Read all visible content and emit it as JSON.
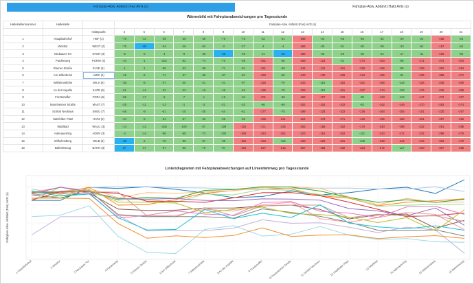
{
  "tabs": [
    {
      "label": "Fahrplan-Abw. Abfahrt (Fan AVG (s)"
    },
    {
      "label": "Fahrplan-Abw. Abfahrt (Halt) AVG (s)"
    }
  ],
  "heatmap": {
    "title": "Wärmebild mit Fahrplanabweichungen pro Tagesstunde",
    "col_headers": {
      "index": "Haltestellennummer",
      "name": "Haltestelle",
      "point": "Haltepunkt",
      "group": "Fahrplan-Abw. Abfahrt (Fan) AVG (s)"
    },
    "hours": [
      "4",
      "5",
      "6",
      "7",
      "8",
      "9",
      "10",
      "11",
      "12",
      "13",
      "14",
      "15",
      "16",
      "17",
      "18",
      "19",
      "20",
      "21"
    ],
    "rows": [
      {
        "index": "1",
        "name": "Hauptbahnhof",
        "point": "HBF (1)",
        "values": [
          "-76",
          "-14",
          "-26",
          "-36",
          "-46",
          "-76",
          "-75",
          "-32",
          "-41",
          "-266",
          "-34",
          "-66",
          "-46",
          "-32",
          "-29",
          "-24",
          "-165",
          "-64"
        ],
        "cls": [
          "g",
          "g",
          "g",
          "g",
          "g",
          "g",
          "g",
          "g",
          "g",
          "r",
          "g",
          "g",
          "g",
          "g",
          "g",
          "g",
          "r",
          "g"
        ]
      },
      {
        "index": "2",
        "name": "Westtor",
        "point": "WEST (2)",
        "values": [
          "-76",
          "-38",
          "-34",
          "-26",
          "-63",
          "-3",
          "-27",
          "-4",
          "-4",
          "-166",
          "-35",
          "-51",
          "-35",
          "-29",
          "-43",
          "-52",
          "-157",
          "-64"
        ],
        "cls": [
          "g",
          "b",
          "g",
          "g",
          "g",
          "g",
          "g",
          "g",
          "g",
          "r",
          "g",
          "g",
          "g",
          "g",
          "g",
          "g",
          "r",
          "g"
        ]
      },
      {
        "index": "3",
        "name": "Neubauer Tor",
        "point": "NTOR (3)",
        "values": [
          "-5",
          "-6",
          "-4",
          "-9",
          "-26",
          "-35",
          "-28",
          "-21",
          "-29",
          "-166",
          "-36",
          "-29",
          "-36",
          "-24",
          "-17",
          "-41",
          "-106",
          "-66"
        ],
        "cls": [
          "g",
          "g",
          "g",
          "g",
          "g",
          "b",
          "g",
          "g",
          "b",
          "r",
          "g",
          "g",
          "g",
          "g",
          "g",
          "g",
          "r",
          "g"
        ]
      },
      {
        "index": "4",
        "name": "Pardenweg",
        "point": "PGRW (4)",
        "values": [
          "-10",
          "-1",
          "-102",
          "-62",
          "-74",
          "-70",
          "-38",
          "-161",
          "-66",
          "-159",
          "-124",
          "-31",
          "-174",
          "-154",
          "-86",
          "-171",
          "-274",
          "-204"
        ],
        "cls": [
          "g",
          "g",
          "g",
          "g",
          "g",
          "g",
          "g",
          "r",
          "g",
          "r",
          "r",
          "g",
          "r",
          "r",
          "g",
          "r",
          "r",
          "r"
        ]
      },
      {
        "index": "5",
        "name": "Ebener Straße",
        "point": "ELSE (4)",
        "values": [
          "-1",
          "-1",
          "-99",
          "-33",
          "-59",
          "-71",
          "-81",
          "-161",
          "-69",
          "-244",
          "-131",
          "-161",
          "-158",
          "-166",
          "-86",
          "-239",
          "-362",
          "-284"
        ],
        "cls": [
          "g",
          "g",
          "g",
          "g",
          "g",
          "g",
          "g",
          "r",
          "g",
          "r",
          "r",
          "r",
          "r",
          "r",
          "g",
          "r",
          "r",
          "r"
        ]
      },
      {
        "index": "6",
        "name": "Am Silberbrink",
        "point": "AMSI (4)",
        "values": [
          "-15",
          "-6",
          "-71",
          "-37",
          "-66",
          "-87",
          "-81",
          "-160",
          "-66",
          "-243",
          "-130",
          "-166",
          "-134",
          "-165",
          "-91",
          "-236",
          "-368",
          "-271"
        ],
        "cls": [
          "g",
          "g",
          "g",
          "g",
          "g",
          "g",
          "g",
          "r",
          "g",
          "r",
          "r",
          "r",
          "r",
          "r",
          "g",
          "r",
          "r",
          "r"
        ]
      },
      {
        "index": "7",
        "name": "Wilhelmsthöhe",
        "point": "WILH (5)",
        "values": [
          "-36",
          "-8",
          "-37",
          "-30",
          "-21",
          "-41",
          "-87",
          "-125",
          "-76",
          "-243",
          "-118",
          "-116",
          "-151",
          "-166",
          "-144",
          "-126",
          "-236",
          "-280"
        ],
        "cls": [
          "g",
          "g",
          "g",
          "g",
          "g",
          "g",
          "g",
          "r",
          "g",
          "r",
          "g",
          "r",
          "r",
          "r",
          "g",
          "r",
          "r",
          "r"
        ]
      },
      {
        "index": "8",
        "name": "An der Kapelle",
        "point": "KAPE (6)",
        "values": [
          "-61",
          "-14",
          "-22",
          "-23",
          "-16",
          "-46",
          "-62",
          "-135",
          "-78",
          "-229",
          "-118",
          "-161",
          "-157",
          "-174",
          "-126",
          "-176",
          "-215",
          "-269"
        ],
        "cls": [
          "g",
          "g",
          "g",
          "g",
          "g",
          "g",
          "g",
          "r",
          "g",
          "r",
          "g",
          "r",
          "r",
          "r",
          "g",
          "r",
          "r",
          "r"
        ]
      },
      {
        "index": "9",
        "name": "Forstersdfer",
        "point": "FORA (6)",
        "values": [
          "-55",
          "-17",
          "-6",
          "-7",
          "-1",
          "-15",
          "-34",
          "-101",
          "-68",
          "-183",
          "-107",
          "-106",
          "-88",
          "-123",
          "-113",
          "-147",
          "-272",
          "-227"
        ],
        "cls": [
          "g",
          "g",
          "g",
          "g",
          "g",
          "g",
          "g",
          "r",
          "g",
          "r",
          "r",
          "r",
          "g",
          "r",
          "g",
          "r",
          "r",
          "r"
        ]
      },
      {
        "index": "10",
        "name": "Mannheimer Straße",
        "point": "MAST (7)",
        "values": [
          "-25",
          "-11",
          "-13",
          "-1",
          "-3",
          "-21",
          "-33",
          "-86",
          "-69",
          "-202",
          "-102",
          "-102",
          "-83",
          "-142",
          "-149",
          "-170",
          "-262",
          "-274"
        ],
        "cls": [
          "g",
          "g",
          "g",
          "g",
          "g",
          "g",
          "g",
          "g",
          "g",
          "r",
          "r",
          "r",
          "g",
          "r",
          "r",
          "r",
          "r",
          "r"
        ]
      },
      {
        "index": "11",
        "name": "Schloß Neuhaus",
        "point": "SNEU (7)",
        "values": [
          "-46",
          "-9",
          "-51",
          "-10",
          "-25",
          "-44",
          "-51",
          "-177",
          "-75",
          "-199",
          "-126",
          "-102",
          "-136",
          "-164",
          "-154",
          "-101",
          "-220",
          "-267"
        ],
        "cls": [
          "g",
          "g",
          "g",
          "g",
          "g",
          "g",
          "g",
          "r",
          "g",
          "r",
          "r",
          "r",
          "r",
          "r",
          "r",
          "r",
          "r",
          "r"
        ]
      },
      {
        "index": "12",
        "name": "Hatzfelder Platz",
        "point": "HATZ (2)",
        "values": [
          "-34",
          "-9",
          "-64",
          "-57",
          "-60",
          "-59",
          "-86",
          "-196",
          "-121",
          "-224",
          "-178",
          "-171",
          "-146",
          "-196",
          "-168",
          "-201",
          "-267",
          "-265"
        ],
        "cls": [
          "g",
          "g",
          "g",
          "g",
          "g",
          "g",
          "g",
          "r",
          "r",
          "r",
          "r",
          "r",
          "r",
          "r",
          "r",
          "r",
          "r",
          "r"
        ]
      },
      {
        "index": "13",
        "name": "Waldbad",
        "point": "WALU (3)",
        "values": [
          "-14",
          "-13",
          "-106",
          "-100",
          "-87",
          "-109",
          "-125",
          "-171",
          "-134",
          "-253",
          "-156",
          "-152",
          "-170",
          "-240",
          "-198",
          "-222",
          "-291",
          "-286"
        ],
        "cls": [
          "g",
          "g",
          "g",
          "g",
          "g",
          "g",
          "r",
          "r",
          "r",
          "r",
          "r",
          "r",
          "r",
          "r",
          "r",
          "r",
          "r",
          "r"
        ]
      },
      {
        "index": "14",
        "name": "Adenauerring",
        "point": "ADEN (3)",
        "values": [
          "-4",
          "-14",
          "-86",
          "-65",
          "-73",
          "-103",
          "-166",
          "-143",
          "-161",
          "-223",
          "-151",
          "-162",
          "-112",
          "-243",
          "-171",
          "-232",
          "-286",
          "-276"
        ],
        "cls": [
          "g",
          "g",
          "g",
          "g",
          "g",
          "g",
          "r",
          "r",
          "r",
          "r",
          "r",
          "r",
          "g",
          "r",
          "r",
          "r",
          "r",
          "r"
        ]
      },
      {
        "index": "15",
        "name": "Wilhelmsberg",
        "point": "WILB (3)",
        "values": [
          "-38",
          "-2",
          "-78",
          "-86",
          "-87",
          "-98",
          "-159",
          "-153",
          "-118",
          "-239",
          "-229",
          "-161",
          "-109",
          "-238",
          "-244",
          "-216",
          "-304",
          "-270"
        ],
        "cls": [
          "b",
          "g",
          "g",
          "g",
          "g",
          "g",
          "r",
          "r",
          "g",
          "r",
          "r",
          "r",
          "g",
          "r",
          "r",
          "r",
          "r",
          "r"
        ]
      },
      {
        "index": "16",
        "name": "Bahnhnszug",
        "point": "BAHN (3)",
        "values": [
          "37",
          "-27",
          "-67",
          "-85",
          "-70",
          "-97",
          "-146",
          "-237",
          "-213",
          "-367",
          "-186",
          "-192",
          "-153",
          "-272",
          "-127",
          "-240",
          "-307",
          "-285"
        ],
        "cls": [
          "b",
          "g",
          "g",
          "g",
          "g",
          "g",
          "r",
          "r",
          "r",
          "r",
          "r",
          "r",
          "r",
          "r",
          "g",
          "r",
          "r",
          "r"
        ]
      }
    ]
  },
  "chart_data": {
    "type": "line",
    "title": "Liniendiagramm mit Fahrplanabweichungen auf Linienfahrweg pro Tagesstunde",
    "ylabel": "Fahrplan-Abw. Abfahrt (Fan) AVG (s)",
    "xlabel": "",
    "categories": [
      "1 Hauptbahnhof",
      "2 Westtor",
      "3 Neubauer Tor",
      "4 Pardenweg",
      "5 Ebener Straße",
      "6 Am Silberbrink",
      "7 Wilhelmsthöhe",
      "8 An der Kapelle",
      "9 Forstersdfer",
      "10 Mannheimer Straße",
      "11 Schloß Neuhaus",
      "12 Hatzfelder Platz",
      "13 Waldbad",
      "14 Adenauerring",
      "15 Wilhelmsberg",
      "16 Bahnhnszug"
    ],
    "ylim": [
      -400,
      60
    ],
    "grid": true,
    "series": [
      {
        "color": "#1f77b4",
        "values": [
          -76,
          -76,
          -5,
          -10,
          -1,
          -15,
          -36,
          -61,
          -55,
          -25,
          -46,
          -34,
          -14,
          -4,
          -38,
          37
        ]
      },
      {
        "color": "#aec7e8",
        "values": [
          -14,
          -38,
          -6,
          -1,
          -1,
          -6,
          -8,
          -14,
          -17,
          -11,
          -9,
          -9,
          -13,
          -14,
          -2,
          -27
        ]
      },
      {
        "color": "#ff7f0e",
        "values": [
          -26,
          -34,
          -4,
          -102,
          -99,
          -71,
          -37,
          -22,
          -6,
          -13,
          -51,
          -64,
          -106,
          -86,
          -78,
          -67
        ]
      },
      {
        "color": "#ffbb78",
        "values": [
          -36,
          -26,
          -9,
          -62,
          -33,
          -37,
          -30,
          -23,
          -7,
          -1,
          -10,
          -57,
          -100,
          -65,
          -86,
          -85
        ]
      },
      {
        "color": "#2ca02c",
        "values": [
          -46,
          -63,
          -26,
          -74,
          -59,
          -66,
          -21,
          -16,
          -1,
          -3,
          -25,
          -60,
          -87,
          -73,
          -87,
          -70
        ]
      },
      {
        "color": "#98df8a",
        "values": [
          -76,
          -3,
          -35,
          -70,
          -71,
          -87,
          -41,
          -46,
          -15,
          -21,
          -44,
          -59,
          -109,
          -103,
          -98,
          -97
        ]
      },
      {
        "color": "#d62728",
        "values": [
          -75,
          -27,
          -28,
          -38,
          -81,
          -81,
          -87,
          -62,
          -34,
          -33,
          -51,
          -86,
          -125,
          -166,
          -159,
          -146
        ]
      },
      {
        "color": "#ff9896",
        "values": [
          -32,
          -4,
          -21,
          -161,
          -161,
          -160,
          -125,
          -135,
          -101,
          -86,
          -177,
          -196,
          -171,
          -143,
          -153,
          -237
        ]
      },
      {
        "color": "#9467bd",
        "values": [
          -41,
          -4,
          -29,
          -66,
          -69,
          -66,
          -76,
          -78,
          -68,
          -69,
          -75,
          -121,
          -134,
          -161,
          -118,
          -213
        ]
      },
      {
        "color": "#c5b0d5",
        "values": [
          -266,
          -166,
          -166,
          -159,
          -244,
          -243,
          -243,
          -229,
          -183,
          -202,
          -199,
          -224,
          -253,
          -223,
          -239,
          -367
        ]
      },
      {
        "color": "#8c564b",
        "values": [
          -34,
          -35,
          -36,
          -124,
          -131,
          -130,
          -118,
          -118,
          -107,
          -102,
          -126,
          -178,
          -156,
          -151,
          -229,
          -186
        ]
      },
      {
        "color": "#c49c94",
        "values": [
          -66,
          -51,
          -29,
          -31,
          -161,
          -166,
          -116,
          -161,
          -106,
          -102,
          -102,
          -171,
          -152,
          -162,
          -161,
          -192
        ]
      },
      {
        "color": "#e377c2",
        "values": [
          -46,
          -35,
          -36,
          -174,
          -158,
          -134,
          -151,
          -157,
          -88,
          -83,
          -136,
          -146,
          -170,
          -112,
          -109,
          -153
        ]
      },
      {
        "color": "#7f7f7f",
        "values": [
          -32,
          -29,
          -24,
          -154,
          -166,
          -165,
          -166,
          -174,
          -123,
          -142,
          -164,
          -196,
          -240,
          -243,
          -238,
          -272
        ]
      },
      {
        "color": "#bcbd22",
        "values": [
          -29,
          -43,
          -17,
          -86,
          -86,
          -91,
          -144,
          -126,
          -113,
          -149,
          -154,
          -168,
          -198,
          -171,
          -244,
          -127
        ]
      },
      {
        "color": "#17becf",
        "values": [
          -24,
          -52,
          -41,
          -171,
          -239,
          -236,
          -126,
          -176,
          -147,
          -170,
          -101,
          -201,
          -222,
          -232,
          -216,
          -240
        ]
      },
      {
        "color": "#9edae5",
        "values": [
          -165,
          -157,
          -106,
          -274,
          -362,
          -368,
          -236,
          -215,
          -272,
          -262,
          -220,
          -267,
          -291,
          -286,
          -304,
          -307
        ]
      },
      {
        "color": "#f28e2b",
        "values": [
          -64,
          -64,
          -66,
          -204,
          -284,
          -271,
          -280,
          -269,
          -227,
          -274,
          -267,
          -265,
          -286,
          -276,
          -270,
          -285
        ]
      }
    ]
  }
}
